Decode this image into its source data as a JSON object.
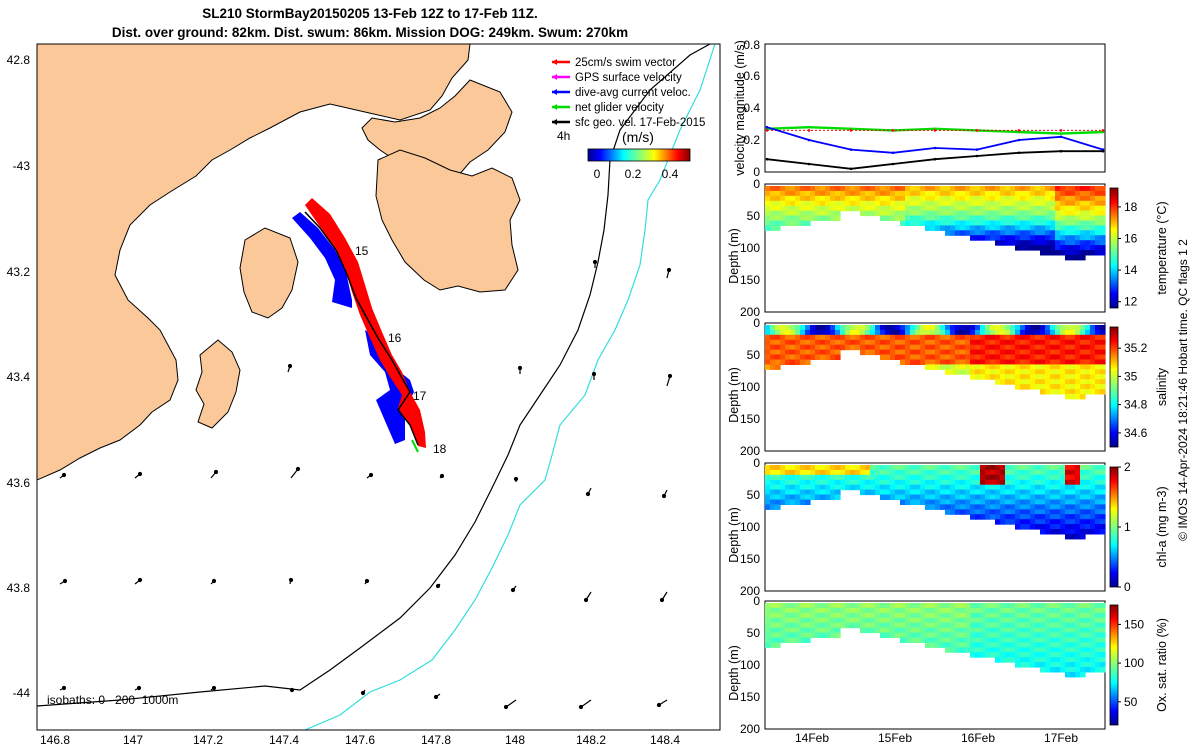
{
  "title": {
    "line1": "SL210 StormBay20150205 13-Feb 12Z to 17-Feb 11Z.",
    "line2": "Dist. over ground: 82km. Dist. swum: 86km. Mission DOG: 249km. Swum: 270km"
  },
  "colors": {
    "land": "#fbc899",
    "swim_vector": "#ff0000",
    "gps_velocity": "#ff00ff",
    "dive_avg": "#0000ff",
    "net_glider": "#00dd00",
    "sfc_geo": "#000000",
    "isobath_200": "#000000",
    "isobath_1000": "#33dddd"
  },
  "map": {
    "legend": [
      {
        "label": "25cm/s swim vector",
        "color_key": "swim_vector"
      },
      {
        "label": "GPS surface velocity",
        "color_key": "gps_velocity"
      },
      {
        "label": "dive-avg current veloc.",
        "color_key": "dive_avg"
      },
      {
        "label": "net glider velocity",
        "color_key": "net_glider"
      },
      {
        "label": "sfc geo. vel. 17-Feb-2015",
        "color_key": "sfc_geo"
      }
    ],
    "timestep_label": "4h",
    "colorbar": {
      "units": "(m/s)",
      "ticks": [
        "0",
        "0.2",
        "0.4"
      ],
      "range": [
        0,
        0.5
      ]
    },
    "lon_ticks": [
      "146.8",
      "147",
      "147.2",
      "147.4",
      "147.6",
      "147.8",
      "148",
      "148.2",
      "148.4"
    ],
    "lat_ticks": [
      "42.8",
      "-43",
      "43.2",
      "43.4",
      "43.6",
      "43.8",
      "-44"
    ],
    "day_labels": [
      "15",
      "16",
      "17",
      "18"
    ],
    "isobath_label": "isobaths: 0   200  1000m"
  },
  "chart_data": [
    {
      "type": "line",
      "title": "",
      "ylabel": "velocity magnitude (m/s)",
      "xlabel": "",
      "ylim": [
        0,
        0.8
      ],
      "yticks": [
        "0",
        "0.2",
        "0.4",
        "0.6",
        "0.8"
      ],
      "x": [
        "13-Feb 12Z",
        "14-Feb",
        "14-Feb 12Z",
        "15-Feb",
        "15-Feb 12Z",
        "16-Feb",
        "16-Feb 12Z",
        "17-Feb",
        "17-Feb 11Z"
      ],
      "series": [
        {
          "name": "net glider velocity",
          "color_key": "net_glider",
          "values": [
            0.27,
            0.28,
            0.27,
            0.26,
            0.27,
            0.26,
            0.25,
            0.24,
            0.25
          ]
        },
        {
          "name": "swim vector",
          "color_key": "swim_vector",
          "values": [
            0.26,
            0.26,
            0.26,
            0.26,
            0.26,
            0.26,
            0.26,
            0.26,
            0.26
          ]
        },
        {
          "name": "dive-avg current veloc.",
          "color_key": "dive_avg",
          "values": [
            0.28,
            0.2,
            0.14,
            0.12,
            0.15,
            0.14,
            0.2,
            0.22,
            0.14
          ]
        },
        {
          "name": "sfc geo. vel.",
          "color_key": "sfc_geo",
          "values": [
            0.08,
            0.05,
            0.02,
            0.05,
            0.08,
            0.1,
            0.12,
            0.13,
            0.13
          ]
        }
      ]
    },
    {
      "type": "heatmap",
      "ylabel": "Depth (m)",
      "colorbar_label": "temperature (°C)",
      "yticks": [
        "0",
        "50",
        "100",
        "150",
        "200"
      ],
      "cbar_ticks": [
        "12",
        "14",
        "16",
        "18"
      ],
      "cbar_range": [
        11.6,
        19.2
      ],
      "x": [
        "14Feb",
        "15Feb",
        "16Feb",
        "17Feb"
      ]
    },
    {
      "type": "heatmap",
      "ylabel": "Depth (m)",
      "colorbar_label": "salinity",
      "yticks": [
        "0",
        "50",
        "100",
        "150",
        "200"
      ],
      "cbar_ticks": [
        "34.6",
        "34.8",
        "35",
        "35.2"
      ],
      "cbar_range": [
        34.5,
        35.35
      ],
      "x": [
        "14Feb",
        "15Feb",
        "16Feb",
        "17Feb"
      ]
    },
    {
      "type": "heatmap",
      "ylabel": "Depth (m)",
      "colorbar_label": "chl-a (mg m-3)",
      "yticks": [
        "0",
        "50",
        "100",
        "150",
        "200"
      ],
      "cbar_ticks": [
        "0",
        "1",
        "2"
      ],
      "cbar_range": [
        0,
        2
      ],
      "x": [
        "14Feb",
        "15Feb",
        "16Feb",
        "17Feb"
      ]
    },
    {
      "type": "heatmap",
      "ylabel": "Depth (m)",
      "colorbar_label": "Ox. sat. ratio (%)",
      "yticks": [
        "0",
        "50",
        "100",
        "150",
        "200"
      ],
      "cbar_ticks": [
        "50",
        "100",
        "150"
      ],
      "cbar_range": [
        20,
        175
      ],
      "x": [
        "14Feb",
        "15Feb",
        "16Feb",
        "17Feb"
      ]
    }
  ],
  "credit": "© IMOS 14-Apr-2024 18:21:46 Hobart time. QC flags 1  2"
}
